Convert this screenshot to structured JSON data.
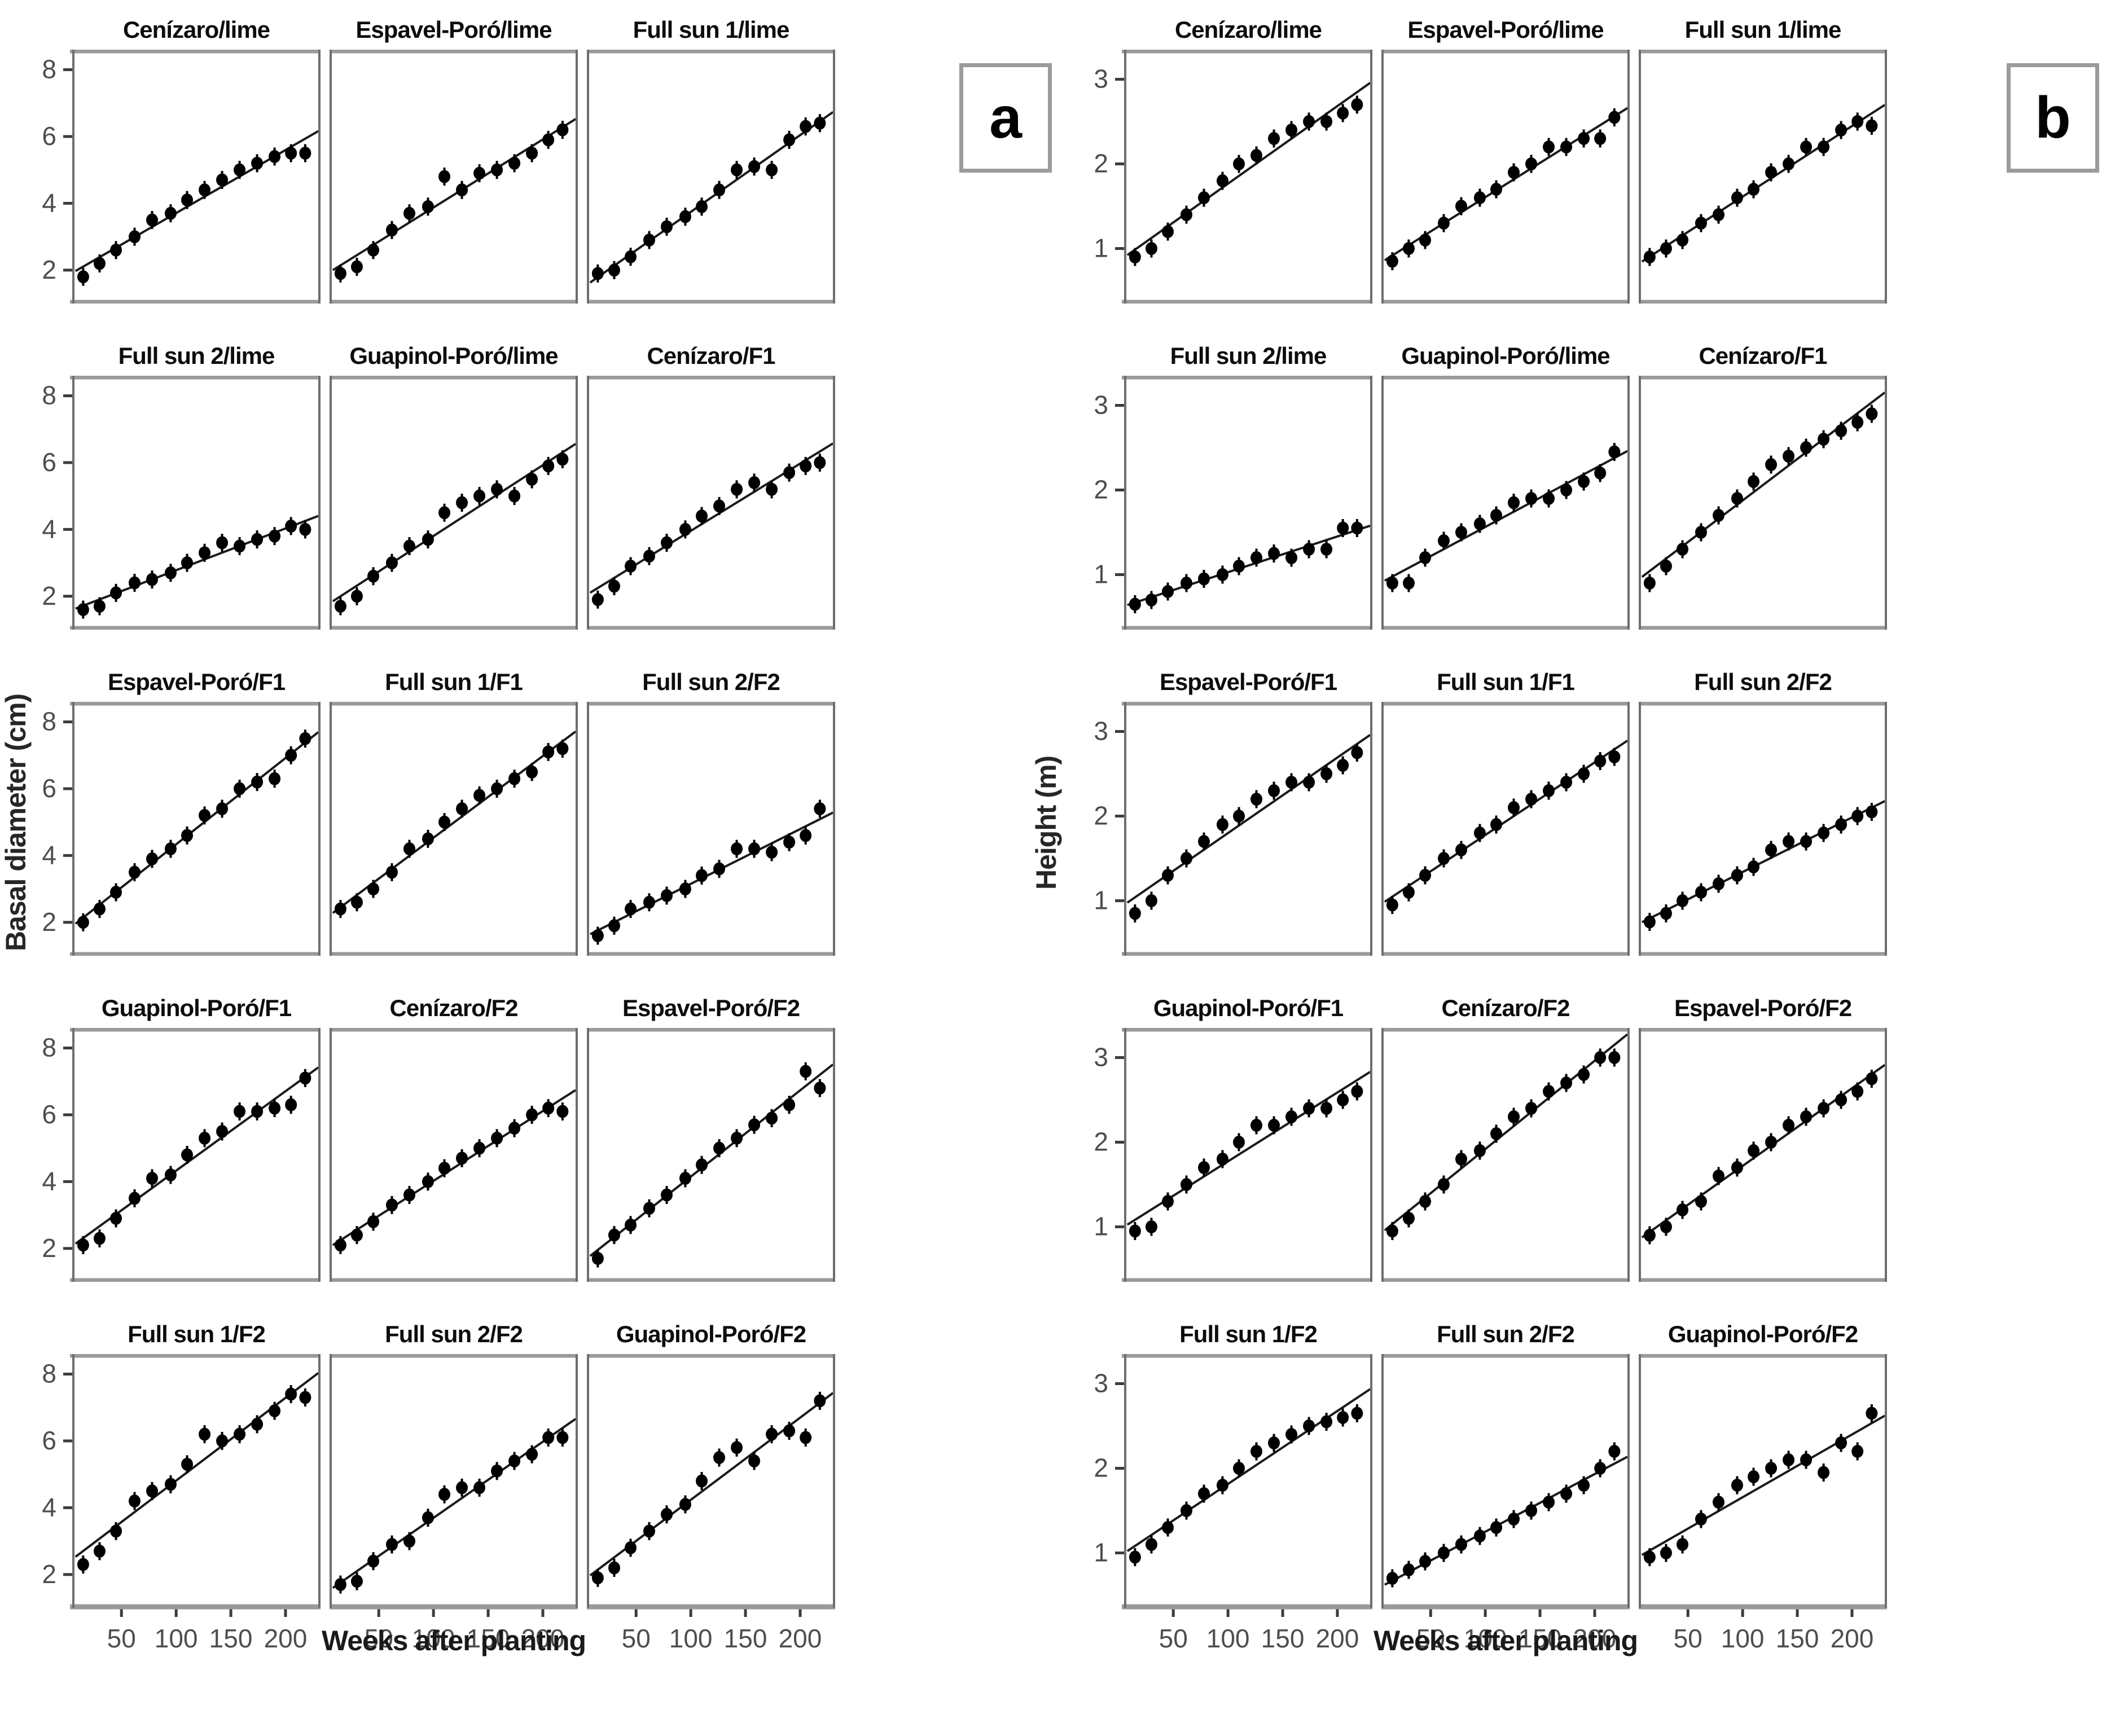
{
  "chart_data": {
    "type": "scatter",
    "layout": "two panels (a: basal diameter, b: height), each a 5x3 grid of small multiples, points with linear fit line, grid off, no legend",
    "xlabel": "Weeks after planting",
    "x_ticks": [
      50,
      100,
      150,
      200
    ],
    "x_range": [
      5,
      232
    ],
    "weeks": [
      15,
      30,
      45,
      62,
      78,
      95,
      110,
      126,
      142,
      158,
      174,
      190,
      205,
      218
    ],
    "point_color": "#000000",
    "line_color": "#1a1a1a",
    "tick_label_color": "#4d4d4d",
    "box_border_color": "#8c8c8c",
    "panels": [
      {
        "label": "a",
        "ylabel": "Basal diameter (cm)",
        "y_ticks": [
          2,
          4,
          6,
          8
        ],
        "y_range": [
          1.0,
          8.6
        ],
        "subplots": [
          {
            "title": "Cenízaro/lime",
            "y": [
              1.8,
              2.2,
              2.6,
              3.0,
              3.5,
              3.7,
              4.1,
              4.4,
              4.7,
              5.0,
              5.2,
              5.4,
              5.5,
              5.5
            ]
          },
          {
            "title": "Espavel-Poró/lime",
            "y": [
              1.9,
              2.1,
              2.6,
              3.2,
              3.7,
              3.9,
              4.8,
              4.4,
              4.9,
              5.0,
              5.2,
              5.5,
              5.9,
              6.2
            ]
          },
          {
            "title": "Full sun 1/lime",
            "y": [
              1.9,
              2.0,
              2.4,
              2.9,
              3.3,
              3.6,
              3.9,
              4.4,
              5.0,
              5.1,
              5.0,
              5.9,
              6.3,
              6.4
            ]
          },
          {
            "title": "Full sun 2/lime",
            "y": [
              1.6,
              1.7,
              2.1,
              2.4,
              2.5,
              2.7,
              3.0,
              3.3,
              3.6,
              3.5,
              3.7,
              3.8,
              4.1,
              4.0
            ]
          },
          {
            "title": "Guapinol-Poró/lime",
            "y": [
              1.7,
              2.0,
              2.6,
              3.0,
              3.5,
              3.7,
              4.5,
              4.8,
              5.0,
              5.2,
              5.0,
              5.5,
              5.9,
              6.1
            ]
          },
          {
            "title": "Cenízaro/F1",
            "y": [
              1.9,
              2.3,
              2.9,
              3.2,
              3.6,
              4.0,
              4.4,
              4.7,
              5.2,
              5.4,
              5.2,
              5.7,
              5.9,
              6.0
            ]
          },
          {
            "title": "Espavel-Poró/F1",
            "y": [
              2.0,
              2.4,
              2.9,
              3.5,
              3.9,
              4.2,
              4.6,
              5.2,
              5.4,
              6.0,
              6.2,
              6.3,
              7.0,
              7.5
            ]
          },
          {
            "title": "Full sun 1/F1",
            "y": [
              2.4,
              2.6,
              3.0,
              3.5,
              4.2,
              4.5,
              5.0,
              5.4,
              5.8,
              6.0,
              6.3,
              6.5,
              7.1,
              7.2
            ]
          },
          {
            "title": "Full sun 2/F2",
            "y": [
              1.6,
              1.9,
              2.4,
              2.6,
              2.8,
              3.0,
              3.4,
              3.6,
              4.2,
              4.2,
              4.1,
              4.4,
              4.6,
              5.4
            ]
          },
          {
            "title": "Guapinol-Poró/F1",
            "y": [
              2.1,
              2.3,
              2.9,
              3.5,
              4.1,
              4.2,
              4.8,
              5.3,
              5.5,
              6.1,
              6.1,
              6.2,
              6.3,
              7.1
            ]
          },
          {
            "title": "Cenízaro/F2",
            "y": [
              2.1,
              2.4,
              2.8,
              3.3,
              3.6,
              4.0,
              4.4,
              4.7,
              5.0,
              5.3,
              5.6,
              6.0,
              6.2,
              6.1
            ]
          },
          {
            "title": "Espavel-Poró/F2",
            "y": [
              1.7,
              2.4,
              2.7,
              3.2,
              3.6,
              4.1,
              4.5,
              5.0,
              5.3,
              5.7,
              5.9,
              6.3,
              7.3,
              6.8
            ]
          },
          {
            "title": "Full sun 1/F2",
            "y": [
              2.3,
              2.7,
              3.3,
              4.2,
              4.5,
              4.7,
              5.3,
              6.2,
              6.0,
              6.2,
              6.5,
              6.9,
              7.4,
              7.3
            ]
          },
          {
            "title": "Full sun 2/F2",
            "y": [
              1.7,
              1.8,
              2.4,
              2.9,
              3.0,
              3.7,
              4.4,
              4.6,
              4.6,
              5.1,
              5.4,
              5.6,
              6.1,
              6.1
            ]
          },
          {
            "title": "Guapinol-Poró/F2",
            "y": [
              1.9,
              2.2,
              2.8,
              3.3,
              3.8,
              4.1,
              4.8,
              5.5,
              5.8,
              5.4,
              6.2,
              6.3,
              6.1,
              7.2
            ]
          }
        ]
      },
      {
        "label": "b",
        "ylabel": "Height (m)",
        "y_ticks": [
          1,
          2,
          3
        ],
        "y_range": [
          0.35,
          3.35
        ],
        "subplots": [
          {
            "title": "Cenízaro/lime",
            "y": [
              0.9,
              1.0,
              1.2,
              1.4,
              1.6,
              1.8,
              2.0,
              2.1,
              2.3,
              2.4,
              2.5,
              2.5,
              2.6,
              2.7
            ]
          },
          {
            "title": "Espavel-Poró/lime",
            "y": [
              0.85,
              1.0,
              1.1,
              1.3,
              1.5,
              1.6,
              1.7,
              1.9,
              2.0,
              2.2,
              2.2,
              2.3,
              2.3,
              2.55
            ]
          },
          {
            "title": "Full sun 1/lime",
            "y": [
              0.9,
              1.0,
              1.1,
              1.3,
              1.4,
              1.6,
              1.7,
              1.9,
              2.0,
              2.2,
              2.2,
              2.4,
              2.5,
              2.45
            ]
          },
          {
            "title": "Full sun 2/lime",
            "y": [
              0.65,
              0.7,
              0.8,
              0.9,
              0.95,
              1.0,
              1.1,
              1.2,
              1.25,
              1.2,
              1.3,
              1.3,
              1.55,
              1.55
            ]
          },
          {
            "title": "Guapinol-Poró/lime",
            "y": [
              0.9,
              0.9,
              1.2,
              1.4,
              1.5,
              1.6,
              1.7,
              1.85,
              1.9,
              1.9,
              2.0,
              2.1,
              2.2,
              2.45
            ]
          },
          {
            "title": "Cenízaro/F1",
            "y": [
              0.9,
              1.1,
              1.3,
              1.5,
              1.7,
              1.9,
              2.1,
              2.3,
              2.4,
              2.5,
              2.6,
              2.7,
              2.8,
              2.9
            ]
          },
          {
            "title": "Espavel-Poró/F1",
            "y": [
              0.85,
              1.0,
              1.3,
              1.5,
              1.7,
              1.9,
              2.0,
              2.2,
              2.3,
              2.4,
              2.4,
              2.5,
              2.6,
              2.75
            ]
          },
          {
            "title": "Full sun 1/F1",
            "y": [
              0.95,
              1.1,
              1.3,
              1.5,
              1.6,
              1.8,
              1.9,
              2.1,
              2.2,
              2.3,
              2.4,
              2.5,
              2.65,
              2.7
            ]
          },
          {
            "title": "Full sun 2/F2",
            "y": [
              0.75,
              0.85,
              1.0,
              1.1,
              1.2,
              1.3,
              1.4,
              1.6,
              1.7,
              1.7,
              1.8,
              1.9,
              2.0,
              2.05
            ]
          },
          {
            "title": "Guapinol-Poró/F1",
            "y": [
              0.95,
              1.0,
              1.3,
              1.5,
              1.7,
              1.8,
              2.0,
              2.2,
              2.2,
              2.3,
              2.4,
              2.4,
              2.5,
              2.6
            ]
          },
          {
            "title": "Cenízaro/F2",
            "y": [
              0.95,
              1.1,
              1.3,
              1.5,
              1.8,
              1.9,
              2.1,
              2.3,
              2.4,
              2.6,
              2.7,
              2.8,
              3.0,
              3.0
            ]
          },
          {
            "title": "Espavel-Poró/F2",
            "y": [
              0.9,
              1.0,
              1.2,
              1.3,
              1.6,
              1.7,
              1.9,
              2.0,
              2.2,
              2.3,
              2.4,
              2.5,
              2.6,
              2.75
            ]
          },
          {
            "title": "Full sun 1/F2",
            "y": [
              0.95,
              1.1,
              1.3,
              1.5,
              1.7,
              1.8,
              2.0,
              2.2,
              2.3,
              2.4,
              2.5,
              2.55,
              2.6,
              2.65
            ]
          },
          {
            "title": "Full sun 2/F2",
            "y": [
              0.7,
              0.8,
              0.9,
              1.0,
              1.1,
              1.2,
              1.3,
              1.4,
              1.5,
              1.6,
              1.7,
              1.8,
              2.0,
              2.2
            ]
          },
          {
            "title": "Guapinol-Poró/F2",
            "y": [
              0.95,
              1.0,
              1.1,
              1.4,
              1.6,
              1.8,
              1.9,
              2.0,
              2.1,
              2.1,
              1.95,
              2.3,
              2.2,
              2.65
            ]
          }
        ]
      }
    ]
  }
}
